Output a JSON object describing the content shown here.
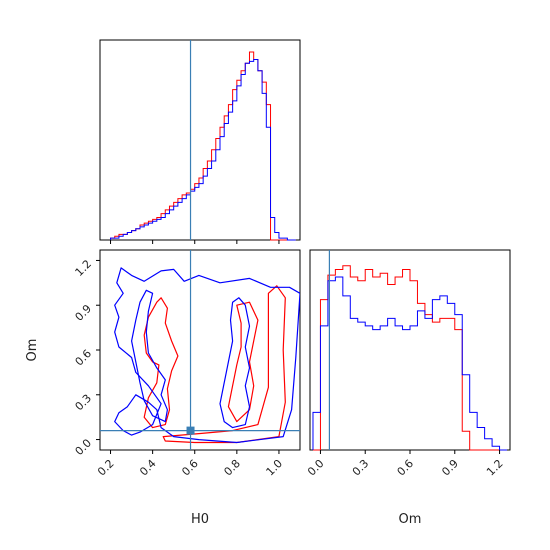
{
  "colors": {
    "red": "#ff0000",
    "blue": "#0000ff",
    "truth": "#3a7fb5",
    "axis": "#000000"
  },
  "chart_data": [
    {
      "type": "histogram",
      "panel": "H0-marginal",
      "xlim": [
        0.15,
        1.1
      ],
      "truth": 0.58,
      "bin_edges": [
        0.2,
        0.22,
        0.24,
        0.26,
        0.28,
        0.3,
        0.32,
        0.34,
        0.36,
        0.38,
        0.4,
        0.42,
        0.44,
        0.46,
        0.48,
        0.5,
        0.52,
        0.54,
        0.56,
        0.58,
        0.6,
        0.62,
        0.64,
        0.66,
        0.68,
        0.7,
        0.72,
        0.74,
        0.76,
        0.78,
        0.8,
        0.82,
        0.84,
        0.86,
        0.88,
        0.9,
        0.92,
        0.94,
        0.96,
        0.98,
        1.0,
        1.02,
        1.04,
        1.06,
        1.08
      ],
      "series": [
        {
          "values": [
            0.01,
            0.02,
            0.03,
            0.03,
            0.04,
            0.05,
            0.06,
            0.08,
            0.09,
            0.1,
            0.11,
            0.12,
            0.14,
            0.16,
            0.18,
            0.2,
            0.22,
            0.24,
            0.25,
            0.27,
            0.3,
            0.33,
            0.38,
            0.42,
            0.48,
            0.54,
            0.6,
            0.66,
            0.72,
            0.8,
            0.85,
            0.9,
            0.94,
            1.0,
            0.96,
            0.9,
            0.84,
            0.72,
            0.0,
            0.0,
            0.0,
            0.0,
            0.0,
            0.0
          ]
        },
        {
          "values": [
            0.01,
            0.01,
            0.02,
            0.03,
            0.04,
            0.05,
            0.06,
            0.07,
            0.08,
            0.09,
            0.1,
            0.11,
            0.12,
            0.14,
            0.16,
            0.18,
            0.2,
            0.22,
            0.24,
            0.26,
            0.28,
            0.3,
            0.34,
            0.38,
            0.42,
            0.48,
            0.55,
            0.62,
            0.68,
            0.74,
            0.82,
            0.88,
            0.94,
            0.95,
            0.96,
            0.9,
            0.78,
            0.6,
            0.12,
            0.04,
            0.01,
            0.01,
            0.0,
            0.0
          ]
        }
      ]
    },
    {
      "type": "contour",
      "panel": "H0-Om-joint",
      "xlim": [
        0.15,
        1.1
      ],
      "ylim": [
        -0.07,
        1.27
      ],
      "xticks": [
        "0.2",
        "0.4",
        "0.6",
        "0.8",
        "1.0"
      ],
      "yticks": [
        "0.0",
        "0.3",
        "0.6",
        "0.9",
        "1.2"
      ],
      "xlabel": "H0",
      "ylabel": "Om",
      "truth": [
        0.58,
        0.06
      ],
      "series": [
        {
          "contours": [
            [
              [
                0.42,
                0.92
              ],
              [
                0.38,
                0.82
              ],
              [
                0.36,
                0.7
              ],
              [
                0.37,
                0.58
              ],
              [
                0.4,
                0.52
              ],
              [
                0.43,
                0.5
              ],
              [
                0.42,
                0.38
              ],
              [
                0.38,
                0.28
              ],
              [
                0.36,
                0.15
              ],
              [
                0.4,
                0.08
              ],
              [
                0.46,
                0.1
              ],
              [
                0.48,
                0.2
              ],
              [
                0.47,
                0.34
              ],
              [
                0.49,
                0.46
              ],
              [
                0.52,
                0.56
              ],
              [
                0.49,
                0.66
              ],
              [
                0.46,
                0.78
              ],
              [
                0.47,
                0.88
              ],
              [
                0.44,
                0.95
              ]
            ],
            [
              [
                0.8,
                0.9
              ],
              [
                0.82,
                0.78
              ],
              [
                0.82,
                0.62
              ],
              [
                0.8,
                0.5
              ],
              [
                0.78,
                0.36
              ],
              [
                0.76,
                0.22
              ],
              [
                0.8,
                0.12
              ],
              [
                0.86,
                0.2
              ],
              [
                0.88,
                0.36
              ],
              [
                0.86,
                0.52
              ],
              [
                0.88,
                0.66
              ],
              [
                0.9,
                0.8
              ],
              [
                0.86,
                0.92
              ]
            ],
            [
              [
                0.45,
                0.02
              ],
              [
                0.62,
                0.04
              ],
              [
                0.78,
                0.06
              ],
              [
                0.9,
                0.1
              ],
              [
                0.95,
                0.35
              ],
              [
                0.95,
                0.7
              ],
              [
                0.95,
                0.98
              ],
              [
                0.99,
                1.03
              ],
              [
                1.03,
                0.95
              ],
              [
                1.02,
                0.6
              ],
              [
                1.03,
                0.25
              ],
              [
                1.0,
                0.02
              ],
              [
                0.8,
                -0.02
              ],
              [
                0.6,
                -0.02
              ],
              [
                0.46,
                -0.01
              ]
            ]
          ]
        },
        {
          "contours": [
            [
              [
                0.25,
                1.15
              ],
              [
                0.3,
                1.1
              ],
              [
                0.36,
                1.06
              ],
              [
                0.44,
                1.13
              ],
              [
                0.5,
                1.14
              ],
              [
                0.55,
                1.06
              ],
              [
                0.62,
                1.1
              ],
              [
                0.72,
                1.05
              ],
              [
                0.86,
                1.08
              ],
              [
                0.96,
                1.02
              ],
              [
                1.05,
                1.02
              ],
              [
                1.1,
                0.98
              ],
              [
                1.08,
                0.55
              ],
              [
                1.06,
                0.2
              ],
              [
                1.02,
                0.02
              ],
              [
                0.8,
                -0.02
              ],
              [
                0.62,
                0.0
              ],
              [
                0.5,
                0.02
              ],
              [
                0.44,
                0.08
              ],
              [
                0.42,
                0.2
              ],
              [
                0.38,
                0.25
              ],
              [
                0.32,
                0.3
              ],
              [
                0.28,
                0.22
              ],
              [
                0.24,
                0.18
              ],
              [
                0.22,
                0.12
              ],
              [
                0.26,
                0.06
              ],
              [
                0.3,
                0.03
              ],
              [
                0.34,
                0.05
              ],
              [
                0.4,
                0.1
              ],
              [
                0.44,
                0.24
              ],
              [
                0.38,
                0.36
              ],
              [
                0.32,
                0.45
              ],
              [
                0.3,
                0.55
              ],
              [
                0.24,
                0.62
              ],
              [
                0.22,
                0.72
              ],
              [
                0.24,
                0.82
              ],
              [
                0.22,
                0.9
              ],
              [
                0.26,
                0.98
              ],
              [
                0.23,
                1.05
              ],
              [
                0.25,
                1.15
              ]
            ],
            [
              [
                0.4,
                0.98
              ],
              [
                0.38,
                0.86
              ],
              [
                0.37,
                0.72
              ],
              [
                0.38,
                0.58
              ],
              [
                0.42,
                0.48
              ],
              [
                0.46,
                0.4
              ],
              [
                0.44,
                0.3
              ],
              [
                0.47,
                0.2
              ],
              [
                0.46,
                0.12
              ],
              [
                0.4,
                0.16
              ],
              [
                0.36,
                0.26
              ],
              [
                0.34,
                0.38
              ],
              [
                0.32,
                0.52
              ],
              [
                0.3,
                0.66
              ],
              [
                0.32,
                0.8
              ],
              [
                0.34,
                0.92
              ],
              [
                0.37,
                1.0
              ]
            ],
            [
              [
                0.78,
                0.92
              ],
              [
                0.77,
                0.8
              ],
              [
                0.78,
                0.66
              ],
              [
                0.76,
                0.52
              ],
              [
                0.74,
                0.38
              ],
              [
                0.72,
                0.24
              ],
              [
                0.74,
                0.12
              ],
              [
                0.78,
                0.08
              ],
              [
                0.84,
                0.1
              ],
              [
                0.86,
                0.22
              ],
              [
                0.84,
                0.36
              ],
              [
                0.86,
                0.48
              ],
              [
                0.84,
                0.62
              ],
              [
                0.86,
                0.76
              ],
              [
                0.84,
                0.9
              ],
              [
                0.81,
                0.95
              ]
            ]
          ]
        }
      ]
    },
    {
      "type": "histogram",
      "panel": "Om-marginal",
      "xlim": [
        -0.07,
        1.27
      ],
      "xticks": [
        "0.0",
        "0.3",
        "0.6",
        "0.9",
        "1.2"
      ],
      "xlabel": "Om",
      "truth": 0.06,
      "bin_edges": [
        -0.05,
        0.0,
        0.05,
        0.1,
        0.15,
        0.2,
        0.25,
        0.3,
        0.35,
        0.4,
        0.45,
        0.5,
        0.55,
        0.6,
        0.65,
        0.7,
        0.75,
        0.8,
        0.85,
        0.9,
        0.95,
        1.0,
        1.05,
        1.1,
        1.15,
        1.2,
        1.25
      ],
      "series": [
        {
          "values": [
            0.0,
            0.8,
            0.93,
            0.96,
            0.98,
            0.92,
            0.9,
            0.96,
            0.92,
            0.94,
            0.88,
            0.92,
            0.96,
            0.9,
            0.78,
            0.72,
            0.68,
            0.7,
            0.7,
            0.64,
            0.1,
            0.0,
            0.0,
            0.0,
            0.0,
            0.0
          ]
        },
        {
          "values": [
            0.2,
            0.66,
            0.9,
            0.92,
            0.82,
            0.7,
            0.68,
            0.66,
            0.64,
            0.66,
            0.7,
            0.66,
            0.64,
            0.66,
            0.74,
            0.7,
            0.8,
            0.82,
            0.78,
            0.72,
            0.4,
            0.2,
            0.12,
            0.06,
            0.02,
            0.0
          ]
        }
      ]
    }
  ]
}
